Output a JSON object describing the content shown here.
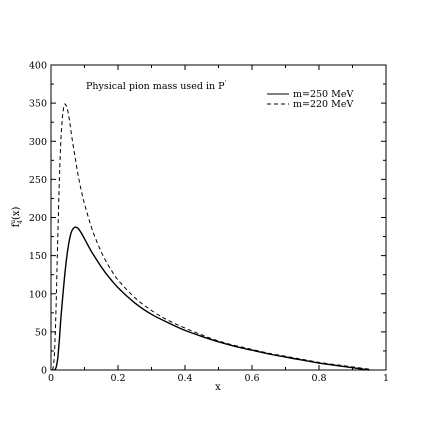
{
  "chart_data": {
    "type": "line",
    "title": "",
    "annotation": "Physical pion mass used in P",
    "annotation_superscript": "'",
    "xlabel": "x",
    "ylabel": "f (x)",
    "ylabel_sub": "4",
    "ylabel_sup": "u",
    "xlim": [
      0,
      1
    ],
    "ylim": [
      0,
      400
    ],
    "x_ticks": [
      0,
      0.2,
      0.4,
      0.6,
      0.8,
      1
    ],
    "x_tick_labels": [
      "0",
      "0.2",
      "0.4",
      "0.6",
      "0.8",
      "1"
    ],
    "y_ticks": [
      0,
      50,
      100,
      150,
      200,
      250,
      300,
      350,
      400
    ],
    "y_tick_labels": [
      "0",
      "50",
      "100",
      "150",
      "200",
      "250",
      "300",
      "350",
      "400"
    ],
    "grid": false,
    "legend_position": "top-right",
    "series": [
      {
        "name": "m=250 MeV",
        "style": "solid",
        "color": "#000000",
        "x": [
          0.01,
          0.015,
          0.02,
          0.025,
          0.03,
          0.04,
          0.05,
          0.06,
          0.07,
          0.08,
          0.09,
          0.1,
          0.12,
          0.14,
          0.16,
          0.18,
          0.2,
          0.25,
          0.3,
          0.35,
          0.4,
          0.45,
          0.5,
          0.55,
          0.6,
          0.65,
          0.7,
          0.75,
          0.8,
          0.85,
          0.9,
          0.95
        ],
        "y": [
          0,
          3,
          15,
          40,
          70,
          120,
          158,
          180,
          187,
          186,
          180,
          172,
          156,
          142,
          129,
          118,
          108,
          88,
          73,
          62,
          52,
          44,
          37,
          31,
          26,
          21,
          17,
          13,
          9,
          6,
          3,
          0
        ]
      },
      {
        "name": "m=220 MeV",
        "style": "dashed",
        "color": "#000000",
        "x": [
          0.005,
          0.01,
          0.015,
          0.02,
          0.025,
          0.03,
          0.035,
          0.04,
          0.045,
          0.05,
          0.055,
          0.06,
          0.07,
          0.08,
          0.09,
          0.1,
          0.12,
          0.14,
          0.16,
          0.18,
          0.2,
          0.25,
          0.3,
          0.35,
          0.4,
          0.45,
          0.5,
          0.55,
          0.6,
          0.65,
          0.7,
          0.75,
          0.8,
          0.85,
          0.9,
          0.95
        ],
        "y": [
          0,
          20,
          80,
          170,
          250,
          305,
          335,
          348,
          347,
          340,
          328,
          312,
          284,
          258,
          236,
          218,
          188,
          165,
          146,
          131,
          118,
          95,
          78,
          65,
          55,
          46,
          38,
          32,
          27,
          22,
          18,
          14,
          10,
          7,
          4,
          1
        ]
      }
    ]
  }
}
